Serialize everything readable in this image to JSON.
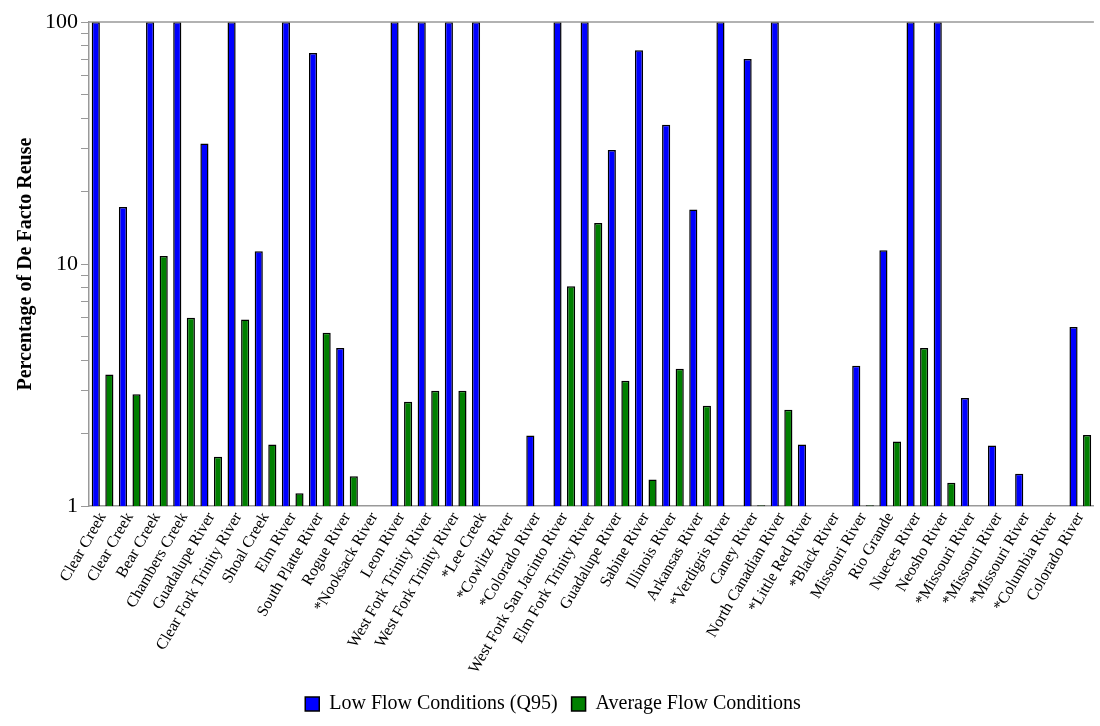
{
  "chart_data": {
    "type": "bar",
    "ylabel": "Percentage of De Facto Reuse",
    "categories": [
      "Clear Creek",
      "Clear Creek",
      "Bear Creek",
      "Chambers Creek",
      "Guadalupe River",
      "Clear Fork Trinity River",
      "Shoal Creek",
      "Elm River",
      "South Platte River",
      "Rogue River",
      "*Nooksack River",
      "Leon River",
      "West Fork Trinity River",
      "West Fork Trinity River",
      "*Lee Creek",
      "*Cowlitz River",
      "*Colorado River",
      "West Fork San Jacinto River",
      "Elm Fork Trinity River",
      "Guadalupe River",
      "Sabine River",
      "Illinois River",
      "Arkansas River",
      "*Verdigris River",
      "Caney River",
      "North Canadian River",
      "*Little Red River",
      "*Black River",
      "Missouri River",
      "Rio Grande",
      "Nueces River",
      "Neosho River",
      "*Missouri River",
      "*Missouri River",
      "*Missouri River",
      "*Columbia River",
      "Colorado River"
    ],
    "series": [
      {
        "name": "Low Flow Conditions (Q95)",
        "color": "#0000ff",
        "values": [
          100,
          17.2,
          100,
          100,
          31.5,
          100,
          11.3,
          100,
          74.5,
          4.5,
          null,
          100,
          100,
          100,
          100,
          null,
          1.96,
          100,
          100,
          29.6,
          76.5,
          37.6,
          16.8,
          100,
          70.4,
          100,
          1.8,
          null,
          3.8,
          11.4,
          100,
          100,
          2.8,
          1.78,
          1.36,
          null,
          5.5
        ]
      },
      {
        "name": "Average Flow Conditions",
        "color": "#008000",
        "values": [
          3.5,
          2.9,
          10.8,
          6.0,
          1.6,
          5.9,
          1.8,
          1.13,
          5.2,
          1.33,
          null,
          2.7,
          3.0,
          3.0,
          null,
          null,
          null,
          8.1,
          14.8,
          3.3,
          1.29,
          3.7,
          2.6,
          null,
          1.01,
          2.5,
          null,
          null,
          1.01,
          1.85,
          4.5,
          1.25,
          null,
          null,
          null,
          null,
          1.97
        ]
      }
    ],
    "log": "y",
    "ylim": [
      1,
      100
    ],
    "yticks": [
      1,
      {
        "value": 2,
        "label": null
      },
      {
        "value": 3,
        "label": null
      },
      {
        "value": 4,
        "label": null
      },
      {
        "value": 5,
        "label": null
      },
      {
        "value": 6,
        "label": null
      },
      {
        "value": 7,
        "label": null
      },
      {
        "value": 8,
        "label": null
      },
      {
        "value": 9,
        "label": null
      },
      10,
      {
        "value": 20,
        "label": null
      },
      {
        "value": 30,
        "label": null
      },
      {
        "value": 40,
        "label": null
      },
      {
        "value": 50,
        "label": null
      },
      {
        "value": 60,
        "label": null
      },
      {
        "value": 70,
        "label": null
      },
      {
        "value": 80,
        "label": null
      },
      {
        "value": 90,
        "label": null
      },
      100
    ],
    "grid": false,
    "legend": "bottom"
  }
}
